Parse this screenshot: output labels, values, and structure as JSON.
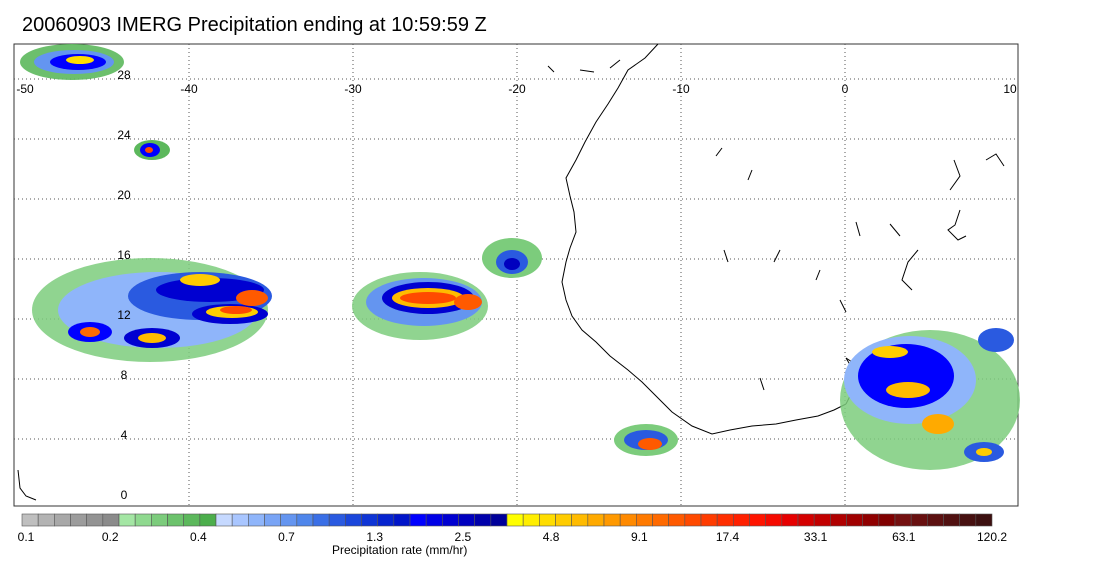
{
  "title": "20060903 IMERG Precipitation ending at 10:59:59 Z",
  "lon_ticks": [
    "-50",
    "-40",
    "-30",
    "-20",
    "-10",
    "0",
    "10"
  ],
  "lat_ticks": [
    "28",
    "24",
    "20",
    "16",
    "12",
    "8",
    "4",
    "0"
  ],
  "colorbar": {
    "title": "Precipitation rate (mm/hr)",
    "tick_labels": [
      "0.1",
      "0.2",
      "0.4",
      "0.7",
      "1.3",
      "2.5",
      "4.8",
      "9.1",
      "17.4",
      "33.1",
      "63.1",
      "120.2"
    ],
    "colors": [
      "#bfbfbf",
      "#b3b3b3",
      "#a8a8a8",
      "#9c9c9c",
      "#939393",
      "#8b8b8b",
      "#a4e6a4",
      "#8fd98f",
      "#7ccc7c",
      "#6cc26c",
      "#5cb85c",
      "#4cae4c",
      "#c6d9ff",
      "#a9c6ff",
      "#8fb5fa",
      "#79a4f5",
      "#6495f0",
      "#4f86eb",
      "#3a6fe6",
      "#2a5ae0",
      "#1a46db",
      "#0f35d5",
      "#0624cf",
      "#0015c9",
      "#0000ff",
      "#0000e6",
      "#0000d1",
      "#0000bf",
      "#0000ab",
      "#00009a",
      "#ffff00",
      "#ffee00",
      "#ffdd00",
      "#ffcc00",
      "#ffbb00",
      "#ffaa00",
      "#ff9900",
      "#ff8a00",
      "#ff7a00",
      "#ff6a00",
      "#ff5a00",
      "#ff4a00",
      "#ff3c00",
      "#ff2e00",
      "#ff2000",
      "#ff1400",
      "#f50a00",
      "#e60000",
      "#d40000",
      "#c20000",
      "#b00000",
      "#a00000",
      "#900000",
      "#800000",
      "#741010",
      "#681010",
      "#5c1010",
      "#501010",
      "#461010",
      "#3c1010"
    ]
  }
}
